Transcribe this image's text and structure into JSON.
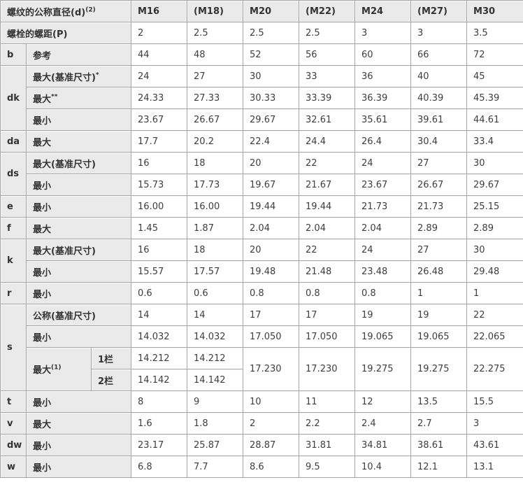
{
  "meta": {
    "accent_gray": "#eaeaea",
    "border_color": "#a6a6a6",
    "text_color": "#3d3d3d"
  },
  "table": {
    "description": "bolt-dimension-spec-table",
    "column_headers": [
      "M16",
      "(M18)",
      "M20",
      "(M22)",
      "M24",
      "(M27)",
      "M30"
    ],
    "rows": [
      {
        "cells": [
          {
            "t": "螺纹的公称直径(d)",
            "sup": "(2)",
            "h": 1,
            "cs": 3,
            "name": "row-header-thread-diameter"
          },
          {
            "t": "M16",
            "h": 1,
            "name": "column-header"
          },
          {
            "t": "(M18)",
            "h": 1,
            "name": "column-header"
          },
          {
            "t": "M20",
            "h": 1,
            "name": "column-header"
          },
          {
            "t": "(M22)",
            "h": 1,
            "name": "column-header"
          },
          {
            "t": "M24",
            "h": 1,
            "name": "column-header"
          },
          {
            "t": "(M27)",
            "h": 1,
            "name": "column-header"
          },
          {
            "t": "M30",
            "h": 1,
            "name": "column-header"
          }
        ]
      },
      {
        "cells": [
          {
            "t": "螺栓的螺距(P)",
            "h": 1,
            "cs": 3,
            "name": "row-header-pitch"
          },
          {
            "t": "2"
          },
          {
            "t": "2.5"
          },
          {
            "t": "2.5"
          },
          {
            "t": "2.5"
          },
          {
            "t": "3"
          },
          {
            "t": "3"
          },
          {
            "t": "3.5"
          }
        ]
      },
      {
        "cells": [
          {
            "t": "b",
            "h": 1,
            "name": "param-letter"
          },
          {
            "t": "参考",
            "h": 1,
            "cs": 2,
            "name": "param-label"
          },
          {
            "t": "44"
          },
          {
            "t": "48"
          },
          {
            "t": "52"
          },
          {
            "t": "56"
          },
          {
            "t": "60"
          },
          {
            "t": "66"
          },
          {
            "t": "72"
          }
        ]
      },
      {
        "cells": [
          {
            "t": "dk",
            "h": 1,
            "rs": 3,
            "name": "param-letter"
          },
          {
            "t": "最大(基准尺寸)",
            "sup": "*",
            "h": 1,
            "cs": 2,
            "name": "param-label"
          },
          {
            "t": "24"
          },
          {
            "t": "27"
          },
          {
            "t": "30"
          },
          {
            "t": "33"
          },
          {
            "t": "36"
          },
          {
            "t": "40"
          },
          {
            "t": "45"
          }
        ]
      },
      {
        "cells": [
          {
            "t": "最大",
            "sup": "**",
            "h": 1,
            "cs": 2,
            "name": "param-label"
          },
          {
            "t": "24.33"
          },
          {
            "t": "27.33"
          },
          {
            "t": "30.33"
          },
          {
            "t": "33.39"
          },
          {
            "t": "36.39"
          },
          {
            "t": "40.39"
          },
          {
            "t": "45.39"
          }
        ]
      },
      {
        "cells": [
          {
            "t": "最小",
            "h": 1,
            "cs": 2,
            "name": "param-label"
          },
          {
            "t": "23.67"
          },
          {
            "t": "26.67"
          },
          {
            "t": "29.67"
          },
          {
            "t": "32.61"
          },
          {
            "t": "35.61"
          },
          {
            "t": "39.61"
          },
          {
            "t": "44.61"
          }
        ]
      },
      {
        "cells": [
          {
            "t": "da",
            "h": 1,
            "name": "param-letter"
          },
          {
            "t": "最大",
            "h": 1,
            "cs": 2,
            "name": "param-label"
          },
          {
            "t": "17.7"
          },
          {
            "t": "20.2"
          },
          {
            "t": "22.4"
          },
          {
            "t": "24.4"
          },
          {
            "t": "26.4"
          },
          {
            "t": "30.4"
          },
          {
            "t": "33.4"
          }
        ]
      },
      {
        "cells": [
          {
            "t": "ds",
            "h": 1,
            "rs": 2,
            "name": "param-letter"
          },
          {
            "t": "最大(基准尺寸)",
            "h": 1,
            "cs": 2,
            "name": "param-label"
          },
          {
            "t": "16"
          },
          {
            "t": "18"
          },
          {
            "t": "20"
          },
          {
            "t": "22"
          },
          {
            "t": "24"
          },
          {
            "t": "27"
          },
          {
            "t": "30"
          }
        ]
      },
      {
        "cells": [
          {
            "t": "最小",
            "h": 1,
            "cs": 2,
            "name": "param-label"
          },
          {
            "t": "15.73"
          },
          {
            "t": "17.73"
          },
          {
            "t": "19.67"
          },
          {
            "t": "21.67"
          },
          {
            "t": "23.67"
          },
          {
            "t": "26.67"
          },
          {
            "t": "29.67"
          }
        ]
      },
      {
        "cells": [
          {
            "t": "e",
            "h": 1,
            "name": "param-letter"
          },
          {
            "t": "最小",
            "h": 1,
            "cs": 2,
            "name": "param-label"
          },
          {
            "t": "16.00"
          },
          {
            "t": "16.00"
          },
          {
            "t": "19.44"
          },
          {
            "t": "19.44"
          },
          {
            "t": "21.73"
          },
          {
            "t": "21.73"
          },
          {
            "t": "25.15"
          }
        ]
      },
      {
        "cells": [
          {
            "t": "f",
            "h": 1,
            "name": "param-letter"
          },
          {
            "t": "最大",
            "h": 1,
            "cs": 2,
            "name": "param-label"
          },
          {
            "t": "1.45"
          },
          {
            "t": "1.87"
          },
          {
            "t": "2.04"
          },
          {
            "t": "2.04"
          },
          {
            "t": "2.04"
          },
          {
            "t": "2.89"
          },
          {
            "t": "2.89"
          }
        ]
      },
      {
        "cells": [
          {
            "t": "k",
            "h": 1,
            "rs": 2,
            "name": "param-letter"
          },
          {
            "t": "最大(基准尺寸)",
            "h": 1,
            "cs": 2,
            "name": "param-label"
          },
          {
            "t": "16"
          },
          {
            "t": "18"
          },
          {
            "t": "20"
          },
          {
            "t": "22"
          },
          {
            "t": "24"
          },
          {
            "t": "27"
          },
          {
            "t": "30"
          }
        ]
      },
      {
        "cells": [
          {
            "t": "最小",
            "h": 1,
            "cs": 2,
            "name": "param-label"
          },
          {
            "t": "15.57"
          },
          {
            "t": "17.57"
          },
          {
            "t": "19.48"
          },
          {
            "t": "21.48"
          },
          {
            "t": "23.48"
          },
          {
            "t": "26.48"
          },
          {
            "t": "29.48"
          }
        ]
      },
      {
        "cells": [
          {
            "t": "r",
            "h": 1,
            "name": "param-letter"
          },
          {
            "t": "最小",
            "h": 1,
            "cs": 2,
            "name": "param-label"
          },
          {
            "t": "0.6"
          },
          {
            "t": "0.6"
          },
          {
            "t": "0.8"
          },
          {
            "t": "0.8"
          },
          {
            "t": "0.8"
          },
          {
            "t": "1"
          },
          {
            "t": "1"
          }
        ]
      },
      {
        "cells": [
          {
            "t": "s",
            "h": 1,
            "rs": 4,
            "name": "param-letter"
          },
          {
            "t": "公称(基准尺寸)",
            "h": 1,
            "cs": 2,
            "name": "param-label"
          },
          {
            "t": "14"
          },
          {
            "t": "14"
          },
          {
            "t": "17"
          },
          {
            "t": "17"
          },
          {
            "t": "19"
          },
          {
            "t": "19"
          },
          {
            "t": "22"
          }
        ]
      },
      {
        "cells": [
          {
            "t": "最小",
            "h": 1,
            "cs": 2,
            "name": "param-label"
          },
          {
            "t": "14.032"
          },
          {
            "t": "14.032"
          },
          {
            "t": "17.050"
          },
          {
            "t": "17.050"
          },
          {
            "t": "19.065"
          },
          {
            "t": "19.065"
          },
          {
            "t": "22.065"
          }
        ]
      },
      {
        "cells": [
          {
            "t": "最大",
            "sup": "(1)",
            "h": 1,
            "rs": 2,
            "name": "param-label"
          },
          {
            "t": "1栏",
            "h": 1,
            "name": "column-variant-label"
          },
          {
            "t": "14.212"
          },
          {
            "t": "14.212"
          },
          {
            "t": "17.230",
            "rs": 2,
            "cls": "top"
          },
          {
            "t": "17.230",
            "rs": 2,
            "cls": "top"
          },
          {
            "t": "19.275",
            "rs": 2,
            "cls": "top"
          },
          {
            "t": "19.275",
            "rs": 2,
            "cls": "top"
          },
          {
            "t": "22.275",
            "rs": 2,
            "cls": "top"
          }
        ]
      },
      {
        "cells": [
          {
            "t": "2栏",
            "h": 1,
            "name": "column-variant-label"
          },
          {
            "t": "14.142"
          },
          {
            "t": "14.142"
          }
        ]
      },
      {
        "cells": [
          {
            "t": "t",
            "h": 1,
            "name": "param-letter"
          },
          {
            "t": "最小",
            "h": 1,
            "cs": 2,
            "name": "param-label"
          },
          {
            "t": "8"
          },
          {
            "t": "9"
          },
          {
            "t": "10"
          },
          {
            "t": "11"
          },
          {
            "t": "12"
          },
          {
            "t": "13.5"
          },
          {
            "t": "15.5"
          }
        ]
      },
      {
        "cells": [
          {
            "t": "v",
            "h": 1,
            "name": "param-letter"
          },
          {
            "t": "最大",
            "h": 1,
            "cs": 2,
            "name": "param-label"
          },
          {
            "t": "1.6"
          },
          {
            "t": "1.8"
          },
          {
            "t": "2"
          },
          {
            "t": "2.2"
          },
          {
            "t": "2.4"
          },
          {
            "t": "2.7"
          },
          {
            "t": "3"
          }
        ]
      },
      {
        "cells": [
          {
            "t": "dw",
            "h": 1,
            "name": "param-letter"
          },
          {
            "t": "最小",
            "h": 1,
            "cs": 2,
            "name": "param-label"
          },
          {
            "t": "23.17"
          },
          {
            "t": "25.87"
          },
          {
            "t": "28.87"
          },
          {
            "t": "31.81"
          },
          {
            "t": "34.81"
          },
          {
            "t": "38.61"
          },
          {
            "t": "43.61"
          }
        ]
      },
      {
        "cells": [
          {
            "t": "w",
            "h": 1,
            "name": "param-letter"
          },
          {
            "t": "最小",
            "h": 1,
            "cs": 2,
            "name": "param-label"
          },
          {
            "t": "6.8"
          },
          {
            "t": "7.7"
          },
          {
            "t": "8.6"
          },
          {
            "t": "9.5"
          },
          {
            "t": "10.4"
          },
          {
            "t": "12.1"
          },
          {
            "t": "13.1"
          }
        ]
      }
    ]
  }
}
